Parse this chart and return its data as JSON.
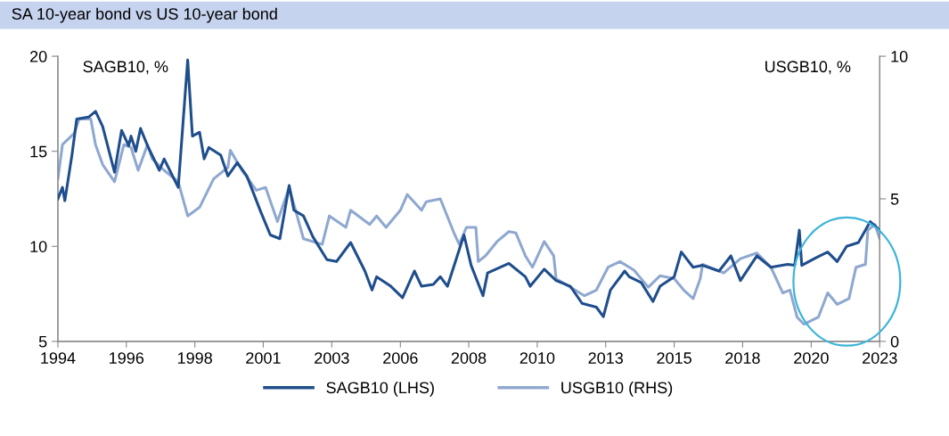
{
  "chart_data": {
    "type": "line",
    "title": "SA 10-year bond vs US 10-year bond",
    "ylabel": "SAGB10, %",
    "y2label": "USGB10, %",
    "xlim": [
      "1994-01",
      "2023-01"
    ],
    "xticks": [
      {
        "value": "1994-01",
        "label": "1994"
      },
      {
        "value": "1996-06",
        "label": "1996"
      },
      {
        "value": "1998-11",
        "label": "1998"
      },
      {
        "value": "2001-04",
        "label": "2001"
      },
      {
        "value": "2003-09",
        "label": "2003"
      },
      {
        "value": "2006-02",
        "label": "2006"
      },
      {
        "value": "2008-07",
        "label": "2008"
      },
      {
        "value": "2010-12",
        "label": "2010"
      },
      {
        "value": "2013-05",
        "label": "2013"
      },
      {
        "value": "2015-10",
        "label": "2015"
      },
      {
        "value": "2018-03",
        "label": "2018"
      },
      {
        "value": "2020-08",
        "label": "2020"
      },
      {
        "value": "2023-01",
        "label": "2023"
      }
    ],
    "ylim": [
      5,
      20
    ],
    "yticks": [
      5,
      10,
      15,
      20
    ],
    "y2lim": [
      0,
      10
    ],
    "y2ticks": [
      0,
      5,
      10
    ],
    "grid": false,
    "legend": "bottom",
    "marker": "none",
    "line_style": "solid",
    "series": [
      {
        "name": "SAGB10 (LHS)",
        "color": "#1f4e8c",
        "x": [
          "1994-01",
          "1994-03",
          "1994-04",
          "1994-07",
          "1994-09",
          "1995-02",
          "1995-05",
          "1995-08",
          "1996-01",
          "1996-04",
          "1996-07",
          "1996-08",
          "1996-10",
          "1996-12",
          "1997-03",
          "1997-08",
          "1997-10",
          "1998-04",
          "1998-08",
          "1998-10",
          "1999-01",
          "1999-03",
          "1999-05",
          "1999-10",
          "2000-01",
          "2000-05",
          "2000-09",
          "2001-03",
          "2001-07",
          "2001-11",
          "2002-03",
          "2002-05",
          "2002-09",
          "2003-01",
          "2003-07",
          "2003-11",
          "2004-05",
          "2004-11",
          "2005-02",
          "2005-04",
          "2005-10",
          "2006-03",
          "2006-08",
          "2006-11",
          "2007-04",
          "2007-07",
          "2007-10",
          "2008-05",
          "2008-08",
          "2009-01",
          "2009-03",
          "2009-12",
          "2010-07",
          "2010-09",
          "2011-03",
          "2011-08",
          "2012-02",
          "2012-07",
          "2013-01",
          "2013-04",
          "2013-07",
          "2014-01",
          "2014-03",
          "2014-08",
          "2015-01",
          "2015-04",
          "2015-10",
          "2016-01",
          "2016-06",
          "2016-10",
          "2017-05",
          "2017-10",
          "2018-02",
          "2018-09",
          "2019-03",
          "2019-10",
          "2020-01",
          "2020-03",
          "2020-04",
          "2020-10",
          "2021-03",
          "2021-07",
          "2021-11",
          "2022-04",
          "2022-09",
          "2023-01"
        ],
        "values": [
          12.5,
          13.1,
          12.4,
          14.8,
          16.7,
          16.8,
          17.1,
          16.3,
          13.9,
          16.1,
          15.3,
          15.8,
          15.0,
          16.2,
          15.3,
          14.0,
          14.6,
          13.1,
          19.8,
          15.8,
          16.0,
          14.6,
          15.2,
          14.8,
          13.7,
          14.4,
          13.7,
          11.8,
          10.6,
          10.4,
          13.2,
          11.9,
          11.6,
          10.5,
          9.3,
          9.2,
          10.2,
          8.7,
          7.7,
          8.4,
          7.9,
          7.3,
          8.7,
          7.9,
          8.0,
          8.4,
          7.9,
          10.6,
          9.0,
          7.4,
          8.6,
          9.1,
          8.4,
          7.9,
          8.8,
          8.2,
          7.9,
          7.0,
          6.8,
          6.3,
          7.7,
          8.7,
          8.4,
          8.1,
          7.1,
          7.9,
          8.4,
          9.7,
          8.9,
          9.0,
          8.7,
          9.5,
          8.2,
          9.5,
          8.9,
          9.05,
          9.0,
          10.85,
          9.0,
          9.4,
          9.7,
          9.2,
          10.0,
          10.2,
          11.3,
          10.85
        ]
      },
      {
        "name": "USGB10 (RHS)",
        "color": "#8fa8d0",
        "axis": "y2",
        "x": [
          "1994-01",
          "1994-03",
          "1994-08",
          "1994-10",
          "1995-03",
          "1995-05",
          "1995-08",
          "1996-01",
          "1996-05",
          "1996-08",
          "1996-11",
          "1997-03",
          "1997-05",
          "1997-10",
          "1998-04",
          "1998-08",
          "1999-01",
          "1999-07",
          "2000-01",
          "2000-02",
          "2000-07",
          "2001-01",
          "2001-05",
          "2001-10",
          "2002-03",
          "2002-09",
          "2003-05",
          "2003-08",
          "2004-03",
          "2004-05",
          "2005-01",
          "2005-04",
          "2005-08",
          "2006-02",
          "2006-05",
          "2006-11",
          "2007-01",
          "2007-07",
          "2008-01",
          "2008-03",
          "2008-06",
          "2008-10",
          "2008-11",
          "2009-02",
          "2009-07",
          "2009-12",
          "2010-03",
          "2010-07",
          "2010-10",
          "2011-03",
          "2011-07",
          "2011-08",
          "2012-02",
          "2012-08",
          "2013-01",
          "2013-06",
          "2013-11",
          "2014-05",
          "2014-11",
          "2015-04",
          "2015-10",
          "2016-02",
          "2016-06",
          "2016-09",
          "2016-10",
          "2017-07",
          "2018-02",
          "2018-09",
          "2019-03",
          "2019-08",
          "2019-11",
          "2020-02",
          "2020-05",
          "2020-11",
          "2021-03",
          "2021-07",
          "2021-12",
          "2022-03",
          "2022-07",
          "2022-08",
          "2022-11",
          "2023-01"
        ],
        "values": [
          5.7,
          6.9,
          7.3,
          7.8,
          7.8,
          6.9,
          6.2,
          5.6,
          6.9,
          6.8,
          6.0,
          6.9,
          6.4,
          6.0,
          5.6,
          4.4,
          4.7,
          5.7,
          6.1,
          6.7,
          6.0,
          5.3,
          5.4,
          4.2,
          5.4,
          3.6,
          3.4,
          4.4,
          4.0,
          4.6,
          4.1,
          4.4,
          4.0,
          4.6,
          5.15,
          4.6,
          4.9,
          5.0,
          3.75,
          3.4,
          4.0,
          4.0,
          2.8,
          3.0,
          3.5,
          3.85,
          3.8,
          3.0,
          2.6,
          3.5,
          3.0,
          2.2,
          1.9,
          1.6,
          1.8,
          2.6,
          2.8,
          2.5,
          1.9,
          2.3,
          2.2,
          1.8,
          1.5,
          2.2,
          2.7,
          2.4,
          2.9,
          3.1,
          2.6,
          1.7,
          1.8,
          0.85,
          0.6,
          0.85,
          1.7,
          1.3,
          1.5,
          2.6,
          2.7,
          3.9,
          4.1,
          3.6
        ]
      }
    ]
  }
}
